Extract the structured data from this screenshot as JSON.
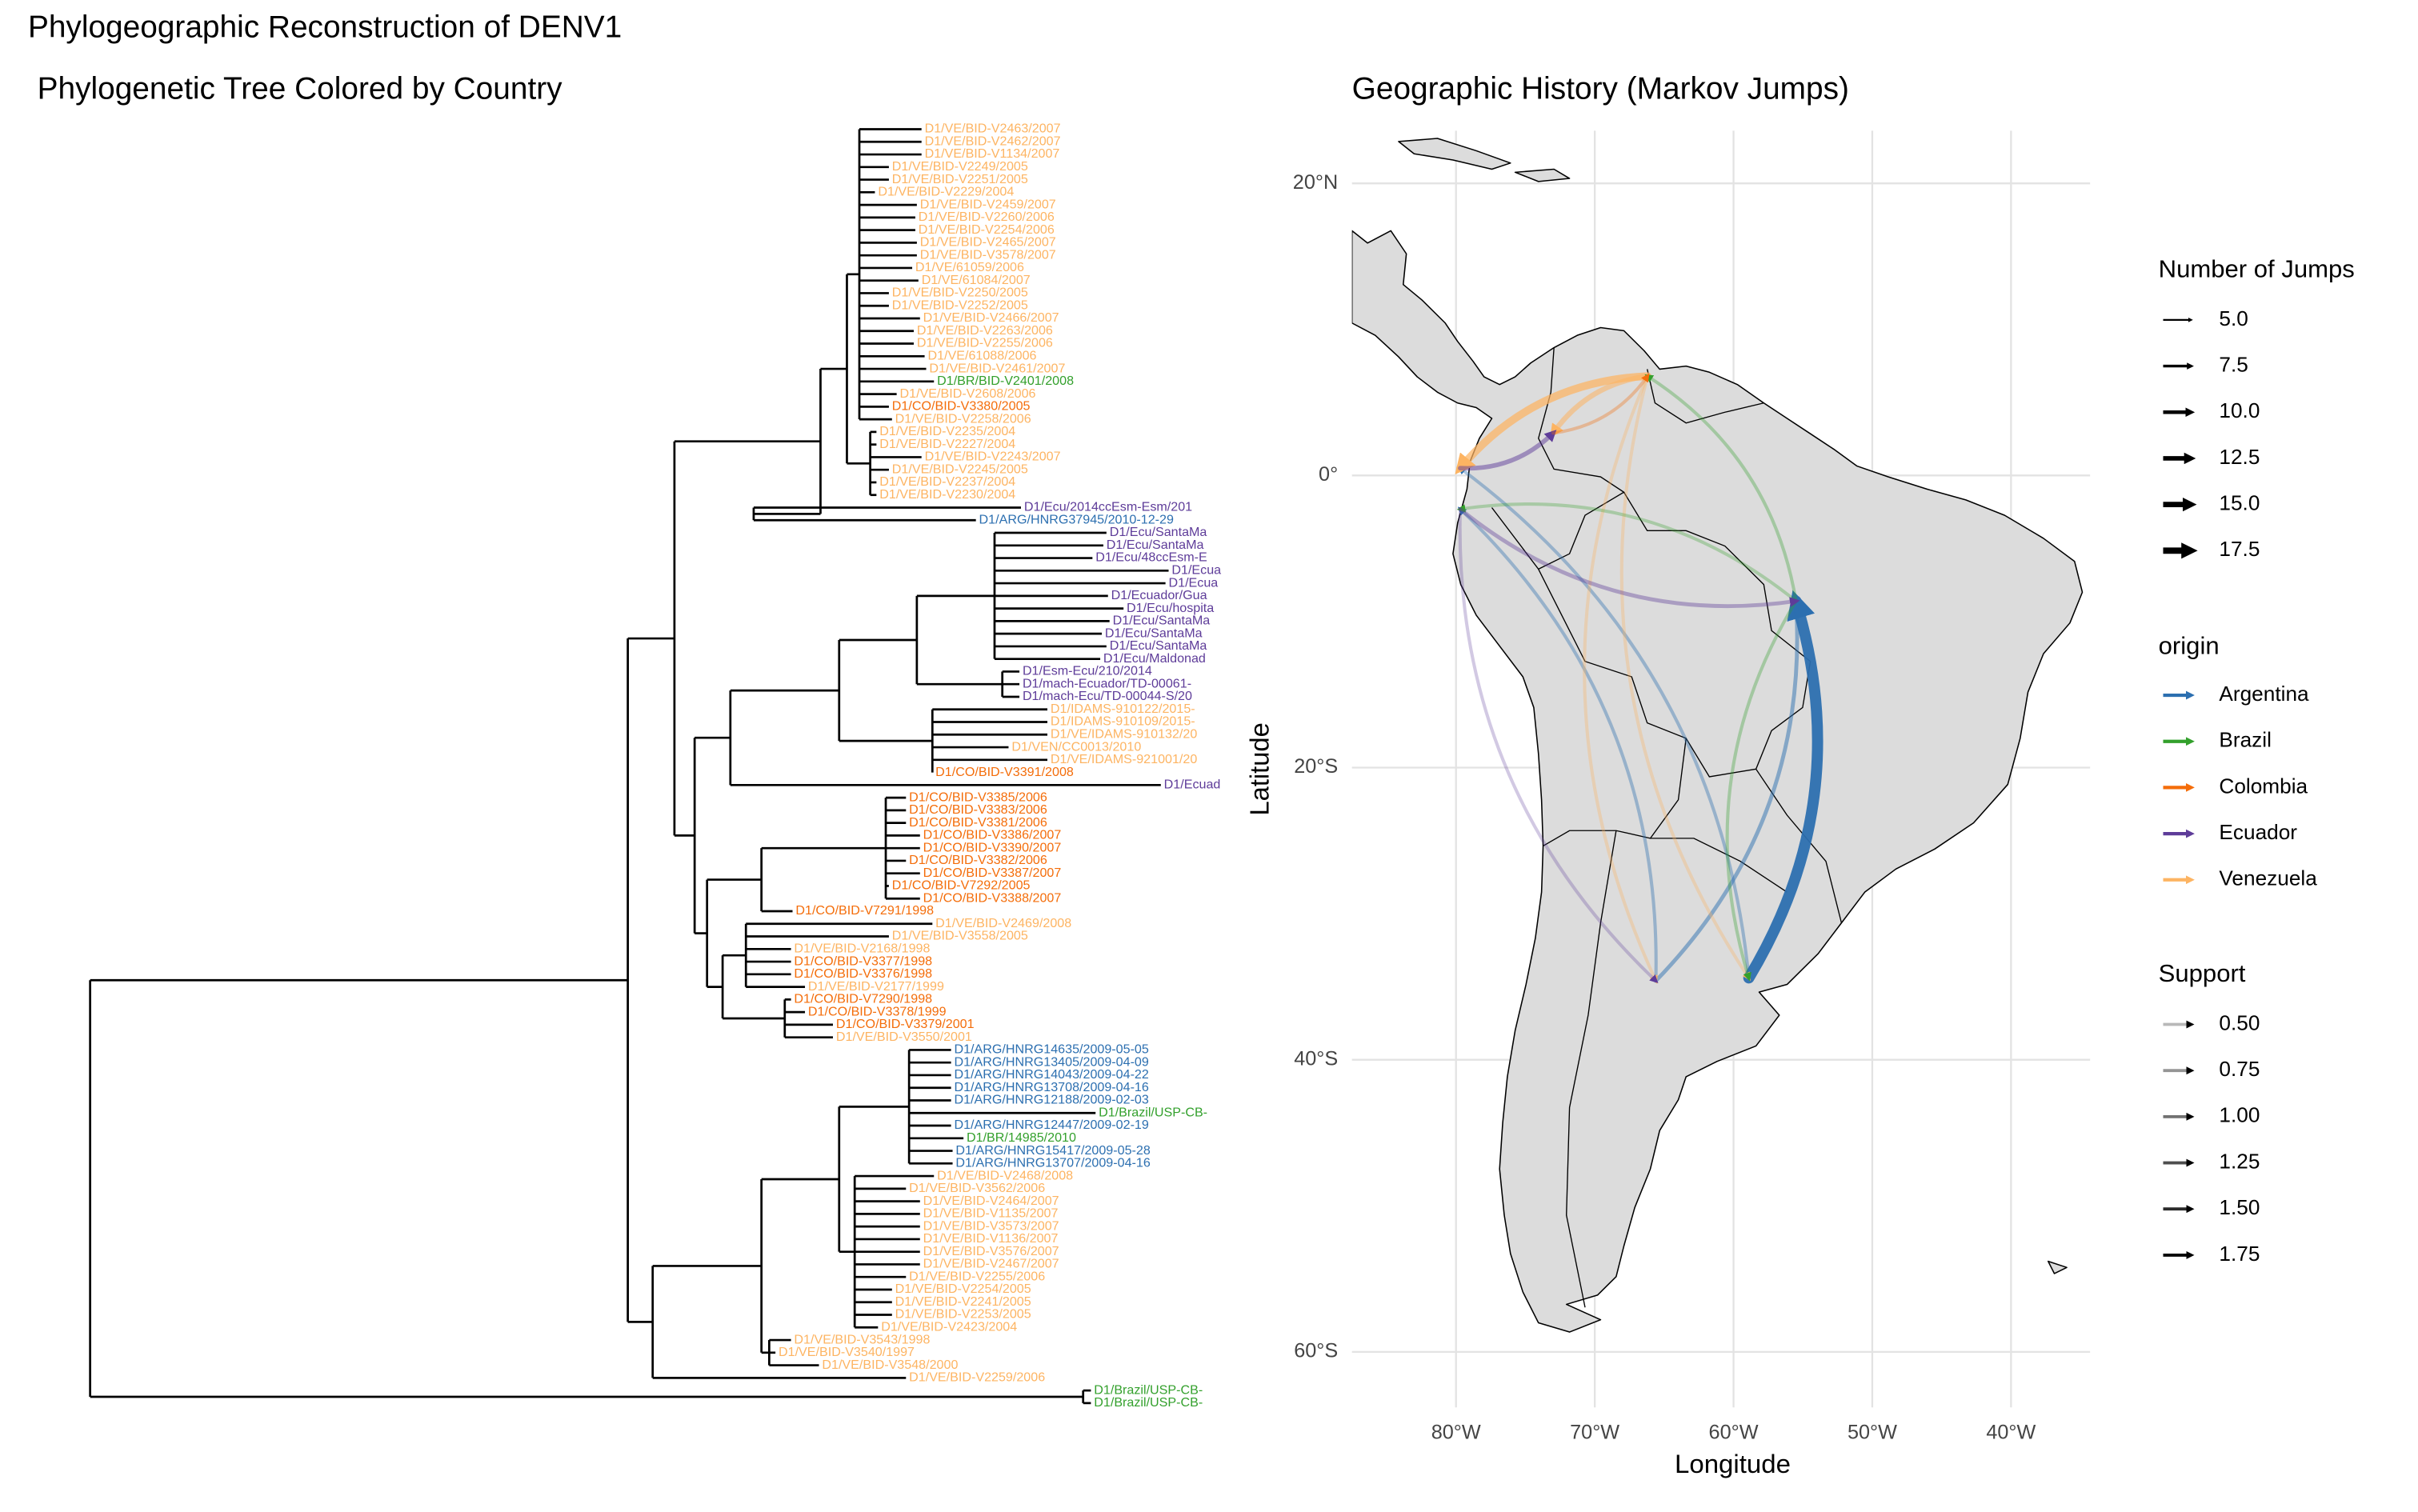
{
  "title": "Phylogeographic Reconstruction of DENV1",
  "chart_data": [
    {
      "type": "tree",
      "title": "Phylogenetic Tree Colored by Country",
      "tips": [
        {
          "label": "D1/VE/BID-V2463/2007",
          "origin": "Venezuela"
        },
        {
          "label": "D1/VE/BID-V2462/2007",
          "origin": "Venezuela"
        },
        {
          "label": "D1/VE/BID-V1134/2007",
          "origin": "Venezuela"
        },
        {
          "label": "D1/VE/BID-V2249/2005",
          "origin": "Venezuela"
        },
        {
          "label": "D1/VE/BID-V2251/2005",
          "origin": "Venezuela"
        },
        {
          "label": "D1/VE/BID-V2229/2004",
          "origin": "Venezuela"
        },
        {
          "label": "D1/VE/BID-V2459/2007",
          "origin": "Venezuela"
        },
        {
          "label": "D1/VE/BID-V2260/2006",
          "origin": "Venezuela"
        },
        {
          "label": "D1/VE/BID-V2254/2006",
          "origin": "Venezuela"
        },
        {
          "label": "D1/VE/BID-V2465/2007",
          "origin": "Venezuela"
        },
        {
          "label": "D1/VE/BID-V3578/2007",
          "origin": "Venezuela"
        },
        {
          "label": "D1/VE/61059/2006",
          "origin": "Venezuela"
        },
        {
          "label": "D1/VE/61084/2007",
          "origin": "Venezuela"
        },
        {
          "label": "D1/VE/BID-V2250/2005",
          "origin": "Venezuela"
        },
        {
          "label": "D1/VE/BID-V2252/2005",
          "origin": "Venezuela"
        },
        {
          "label": "D1/VE/BID-V2466/2007",
          "origin": "Venezuela"
        },
        {
          "label": "D1/VE/BID-V2263/2006",
          "origin": "Venezuela"
        },
        {
          "label": "D1/VE/BID-V2255/2006",
          "origin": "Venezuela"
        },
        {
          "label": "D1/VE/61088/2006",
          "origin": "Venezuela"
        },
        {
          "label": "D1/VE/BID-V2461/2007",
          "origin": "Venezuela"
        },
        {
          "label": "D1/BR/BID-V2401/2008",
          "origin": "Brazil"
        },
        {
          "label": "D1/VE/BID-V2608/2006",
          "origin": "Venezuela"
        },
        {
          "label": "D1/CO/BID-V3380/2005",
          "origin": "Colombia"
        },
        {
          "label": "D1/VE/BID-V2258/2006",
          "origin": "Venezuela"
        },
        {
          "label": "D1/VE/BID-V2235/2004",
          "origin": "Venezuela"
        },
        {
          "label": "D1/VE/BID-V2227/2004",
          "origin": "Venezuela"
        },
        {
          "label": "D1/VE/BID-V2243/2007",
          "origin": "Venezuela"
        },
        {
          "label": "D1/VE/BID-V2245/2005",
          "origin": "Venezuela"
        },
        {
          "label": "D1/VE/BID-V2237/2004",
          "origin": "Venezuela"
        },
        {
          "label": "D1/VE/BID-V2230/2004",
          "origin": "Venezuela"
        },
        {
          "label": "D1/Ecu/2014ccEsm-Esm/201",
          "origin": "Ecuador"
        },
        {
          "label": "D1/ARG/HNRG37945/2010-12-29",
          "origin": "Argentina"
        },
        {
          "label": "D1/Ecu/SantaMa",
          "origin": "Ecuador"
        },
        {
          "label": "D1/Ecu/SantaMa",
          "origin": "Ecuador"
        },
        {
          "label": "D1/Ecu/48ccEsm-E",
          "origin": "Ecuador"
        },
        {
          "label": "D1/Ecua",
          "origin": "Ecuador"
        },
        {
          "label": "D1/Ecua",
          "origin": "Ecuador"
        },
        {
          "label": "D1/Ecuador/Gua",
          "origin": "Ecuador"
        },
        {
          "label": "D1/Ecu/hospita",
          "origin": "Ecuador"
        },
        {
          "label": "D1/Ecu/SantaMa",
          "origin": "Ecuador"
        },
        {
          "label": "D1/Ecu/SantaMa",
          "origin": "Ecuador"
        },
        {
          "label": "D1/Ecu/SantaMa",
          "origin": "Ecuador"
        },
        {
          "label": "D1/Ecu/Maldonad",
          "origin": "Ecuador"
        },
        {
          "label": "D1/Esm-Ecu/210/2014",
          "origin": "Ecuador"
        },
        {
          "label": "D1/mach-Ecuador/TD-00061-",
          "origin": "Ecuador"
        },
        {
          "label": "D1/mach-Ecu/TD-00044-S/20",
          "origin": "Ecuador"
        },
        {
          "label": "D1/IDAMS-910122/2015-",
          "origin": "Venezuela"
        },
        {
          "label": "D1/IDAMS-910109/2015-",
          "origin": "Venezuela"
        },
        {
          "label": "D1/VE/IDAMS-910132/20",
          "origin": "Venezuela"
        },
        {
          "label": "D1/VEN/CC0013/2010",
          "origin": "Venezuela"
        },
        {
          "label": "D1/VE/IDAMS-921001/20",
          "origin": "Venezuela"
        },
        {
          "label": "D1/CO/BID-V3391/2008",
          "origin": "Colombia"
        },
        {
          "label": "D1/Ecuad",
          "origin": "Ecuador"
        },
        {
          "label": "D1/CO/BID-V3385/2006",
          "origin": "Colombia"
        },
        {
          "label": "D1/CO/BID-V3383/2006",
          "origin": "Colombia"
        },
        {
          "label": "D1/CO/BID-V3381/2006",
          "origin": "Colombia"
        },
        {
          "label": "D1/CO/BID-V3386/2007",
          "origin": "Colombia"
        },
        {
          "label": "D1/CO/BID-V3390/2007",
          "origin": "Colombia"
        },
        {
          "label": "D1/CO/BID-V3382/2006",
          "origin": "Colombia"
        },
        {
          "label": "D1/CO/BID-V3387/2007",
          "origin": "Colombia"
        },
        {
          "label": "D1/CO/BID-V7292/2005",
          "origin": "Colombia"
        },
        {
          "label": "D1/CO/BID-V3388/2007",
          "origin": "Colombia"
        },
        {
          "label": "D1/CO/BID-V7291/1998",
          "origin": "Colombia"
        },
        {
          "label": "D1/VE/BID-V2469/2008",
          "origin": "Venezuela"
        },
        {
          "label": "D1/VE/BID-V3558/2005",
          "origin": "Venezuela"
        },
        {
          "label": "D1/VE/BID-V2168/1998",
          "origin": "Venezuela"
        },
        {
          "label": "D1/CO/BID-V3377/1998",
          "origin": "Colombia"
        },
        {
          "label": "D1/CO/BID-V3376/1998",
          "origin": "Colombia"
        },
        {
          "label": "D1/VE/BID-V2177/1999",
          "origin": "Venezuela"
        },
        {
          "label": "D1/CO/BID-V7290/1998",
          "origin": "Colombia"
        },
        {
          "label": "D1/CO/BID-V3378/1999",
          "origin": "Colombia"
        },
        {
          "label": "D1/CO/BID-V3379/2001",
          "origin": "Colombia"
        },
        {
          "label": "D1/VE/BID-V3550/2001",
          "origin": "Venezuela"
        },
        {
          "label": "D1/ARG/HNRG14635/2009-05-05",
          "origin": "Argentina"
        },
        {
          "label": "D1/ARG/HNRG13405/2009-04-09",
          "origin": "Argentina"
        },
        {
          "label": "D1/ARG/HNRG14043/2009-04-22",
          "origin": "Argentina"
        },
        {
          "label": "D1/ARG/HNRG13708/2009-04-16",
          "origin": "Argentina"
        },
        {
          "label": "D1/ARG/HNRG12188/2009-02-03",
          "origin": "Argentina"
        },
        {
          "label": "D1/Brazil/USP-CB-",
          "origin": "Brazil"
        },
        {
          "label": "D1/ARG/HNRG12447/2009-02-19",
          "origin": "Argentina"
        },
        {
          "label": "D1/BR/14985/2010",
          "origin": "Brazil"
        },
        {
          "label": "D1/ARG/HNRG15417/2009-05-28",
          "origin": "Argentina"
        },
        {
          "label": "D1/ARG/HNRG13707/2009-04-16",
          "origin": "Argentina"
        },
        {
          "label": "D1/VE/BID-V2468/2008",
          "origin": "Venezuela"
        },
        {
          "label": "D1/VE/BID-V3562/2006",
          "origin": "Venezuela"
        },
        {
          "label": "D1/VE/BID-V2464/2007",
          "origin": "Venezuela"
        },
        {
          "label": "D1/VE/BID-V1135/2007",
          "origin": "Venezuela"
        },
        {
          "label": "D1/VE/BID-V3573/2007",
          "origin": "Venezuela"
        },
        {
          "label": "D1/VE/BID-V1136/2007",
          "origin": "Venezuela"
        },
        {
          "label": "D1/VE/BID-V3576/2007",
          "origin": "Venezuela"
        },
        {
          "label": "D1/VE/BID-V2467/2007",
          "origin": "Venezuela"
        },
        {
          "label": "D1/VE/BID-V2255/2006",
          "origin": "Venezuela"
        },
        {
          "label": "D1/VE/BID-V2254/2005",
          "origin": "Venezuela"
        },
        {
          "label": "D1/VE/BID-V2241/2005",
          "origin": "Venezuela"
        },
        {
          "label": "D1/VE/BID-V2253/2005",
          "origin": "Venezuela"
        },
        {
          "label": "D1/VE/BID-V2423/2004",
          "origin": "Venezuela"
        },
        {
          "label": "D1/VE/BID-V3543/1998",
          "origin": "Venezuela"
        },
        {
          "label": "D1/VE/BID-V3540/1997",
          "origin": "Venezuela"
        },
        {
          "label": "D1/VE/BID-V3548/2000",
          "origin": "Venezuela"
        },
        {
          "label": "D1/VE/BID-V2259/2006",
          "origin": "Venezuela"
        },
        {
          "label": "D1/Brazil/USP-CB-",
          "origin": "Brazil"
        },
        {
          "label": "D1/Brazil/USP-CB-",
          "origin": "Brazil"
        }
      ]
    },
    {
      "type": "map",
      "title": "Geographic History (Markov Jumps)",
      "x_label": "Longitude",
      "y_label": "Latitude",
      "grid": true,
      "xlim": [
        -87.5,
        -34.3
      ],
      "ylim": [
        -63.8,
        23.6
      ],
      "xticks": [
        {
          "value": -80,
          "label": "80°W"
        },
        {
          "value": -70,
          "label": "70°W"
        },
        {
          "value": -60,
          "label": "60°W"
        },
        {
          "value": -50,
          "label": "50°W"
        },
        {
          "value": -40,
          "label": "40°W"
        }
      ],
      "yticks": [
        {
          "value": 20,
          "label": "20°N"
        },
        {
          "value": 0,
          "label": "0°"
        },
        {
          "value": -20,
          "label": "20°S"
        },
        {
          "value": -40,
          "label": "40°S"
        },
        {
          "value": -60,
          "label": "60°S"
        }
      ],
      "jumps_legend": {
        "title": "Number of Jumps",
        "values": [
          {
            "value": 5,
            "label": "5.0"
          },
          {
            "value": 7.5,
            "label": "7.5"
          },
          {
            "value": 10,
            "label": "10.0"
          },
          {
            "value": 12.5,
            "label": "12.5"
          },
          {
            "value": 15,
            "label": "15.0"
          },
          {
            "value": 17.5,
            "label": "17.5"
          }
        ]
      },
      "origin_legend": {
        "title": "origin",
        "origins": [
          {
            "name": "Argentina",
            "color": "#2c6fb0"
          },
          {
            "name": "Brazil",
            "color": "#33a02c"
          },
          {
            "name": "Colombia",
            "color": "#f46d0a"
          },
          {
            "name": "Ecuador",
            "color": "#5e3c99"
          },
          {
            "name": "Venezuela",
            "color": "#fdb462"
          }
        ]
      },
      "support_legend": {
        "title": "Support",
        "values": [
          {
            "value": 0.5,
            "label": "0.50"
          },
          {
            "value": 0.75,
            "label": "0.75"
          },
          {
            "value": 1,
            "label": "1.00"
          },
          {
            "value": 1.25,
            "label": "1.25"
          },
          {
            "value": 1.5,
            "label": "1.50"
          },
          {
            "value": 1.75,
            "label": "1.75"
          }
        ]
      },
      "arcs": [
        {
          "origin": "Argentina",
          "from": [
            -58.9,
            -34.4
          ],
          "to": [
            -55.5,
            -8.6
          ],
          "jumps": 17,
          "support": 1.7
        },
        {
          "origin": "Argentina",
          "from": [
            -65.6,
            -34.6
          ],
          "to": [
            -55.5,
            -8.6
          ],
          "jumps": 6,
          "support": 0.9
        },
        {
          "origin": "Argentina",
          "from": [
            -65.6,
            -34.6
          ],
          "to": [
            -79.7,
            -2.3
          ],
          "jumps": 5,
          "support": 0.7
        },
        {
          "origin": "Argentina",
          "from": [
            -58.9,
            -34.4
          ],
          "to": [
            -79.7,
            0.5
          ],
          "jumps": 5,
          "support": 0.7
        },
        {
          "origin": "Venezuela",
          "from": [
            -66.2,
            6.8
          ],
          "to": [
            -79.7,
            0.5
          ],
          "jumps": 12,
          "support": 1.3
        },
        {
          "origin": "Venezuela",
          "from": [
            -66.2,
            6.8
          ],
          "to": [
            -73,
            2.9
          ],
          "jumps": 8,
          "support": 1
        },
        {
          "origin": "Venezuela",
          "from": [
            -66.2,
            6.8
          ],
          "to": [
            -65.6,
            -34.6
          ],
          "jumps": 5,
          "support": 0.6
        },
        {
          "origin": "Venezuela",
          "from": [
            -66.2,
            6.8
          ],
          "to": [
            -58.9,
            -34.4
          ],
          "jumps": 5,
          "support": 0.6
        },
        {
          "origin": "Brazil",
          "from": [
            -55.5,
            -8.6
          ],
          "to": [
            -66.2,
            6.8
          ],
          "jumps": 5,
          "support": 0.6
        },
        {
          "origin": "Brazil",
          "from": [
            -55.5,
            -8.6
          ],
          "to": [
            -79.7,
            -2.3
          ],
          "jumps": 5,
          "support": 0.55
        },
        {
          "origin": "Brazil",
          "from": [
            -55.5,
            -8.6
          ],
          "to": [
            -58.9,
            -34.4
          ],
          "jumps": 5,
          "support": 0.6
        },
        {
          "origin": "Ecuador",
          "from": [
            -79.7,
            -2.3
          ],
          "to": [
            -55.5,
            -8.6
          ],
          "jumps": 6,
          "support": 0.7
        },
        {
          "origin": "Ecuador",
          "from": [
            -79.7,
            -2.3
          ],
          "to": [
            -65.6,
            -34.6
          ],
          "jumps": 5,
          "support": 0.5
        },
        {
          "origin": "Ecuador",
          "from": [
            -79.7,
            0.5
          ],
          "to": [
            -73,
            2.9
          ],
          "jumps": 7,
          "support": 0.9
        },
        {
          "origin": "Colombia",
          "from": [
            -73,
            2.9
          ],
          "to": [
            -66.2,
            6.8
          ],
          "jumps": 5,
          "support": 0.6
        }
      ]
    }
  ]
}
